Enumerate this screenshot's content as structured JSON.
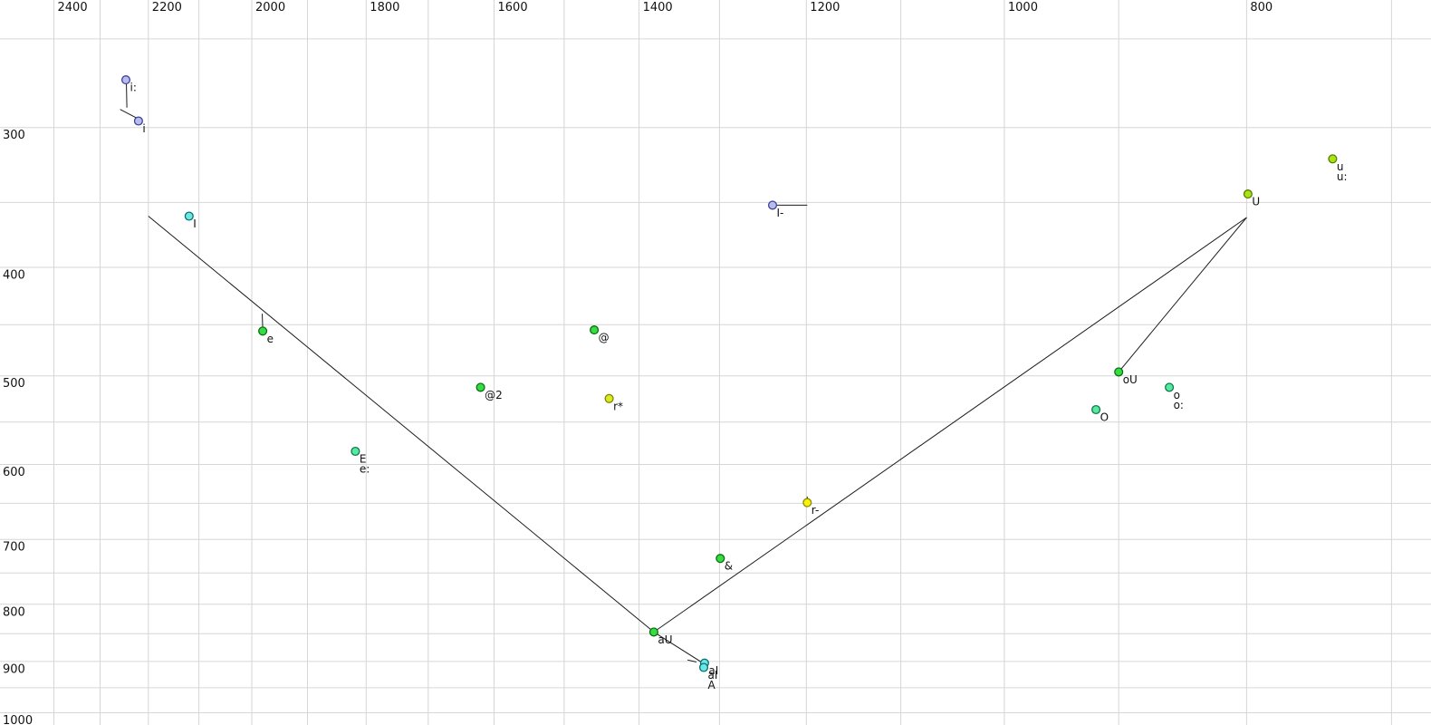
{
  "chart_data": {
    "type": "scatter",
    "title": "",
    "legend": false,
    "grid": true,
    "x_axis": {
      "scale": "log",
      "orientation": "top",
      "direction": "values decrease to the right",
      "tick_labels": [
        "2400",
        "2200",
        "2000",
        "1800",
        "1600",
        "1400",
        "1200",
        "1000",
        "800"
      ],
      "tick_values": [
        2400,
        2200,
        2000,
        1800,
        1600,
        1400,
        1200,
        1000,
        800
      ],
      "gridline_values": [
        2400,
        2300,
        2200,
        2100,
        2000,
        1900,
        1800,
        1700,
        1600,
        1500,
        1400,
        1300,
        1200,
        1100,
        1000,
        900,
        800,
        700
      ],
      "range_shown": [
        2560,
        680
      ]
    },
    "y_axis": {
      "scale": "log",
      "orientation": "left",
      "direction": "values increase downward",
      "tick_labels": [
        "300",
        "400",
        "500",
        "600",
        "700",
        "800",
        "900",
        "1000"
      ],
      "tick_values": [
        300,
        400,
        500,
        600,
        700,
        800,
        900,
        1000
      ],
      "gridline_values": [
        250,
        300,
        350,
        400,
        450,
        500,
        550,
        600,
        650,
        700,
        750,
        800,
        850,
        900,
        950,
        1000
      ],
      "range_shown": [
        250,
        1030
      ]
    },
    "points": [
      {
        "labels": [
          "i:"
        ],
        "f2": 2246,
        "f1": 272,
        "color": "periwinkle"
      },
      {
        "labels": [
          "i"
        ],
        "f2": 2220,
        "f1": 296,
        "color": "periwinkle"
      },
      {
        "labels": [
          "I"
        ],
        "f2": 2119,
        "f1": 360,
        "color": "cyan"
      },
      {
        "labels": [
          "e"
        ],
        "f2": 1980,
        "f1": 456,
        "color": "green"
      },
      {
        "labels": [
          "E",
          "e:"
        ],
        "f2": 1818,
        "f1": 584,
        "color": "mint"
      },
      {
        "labels": [
          "@2"
        ],
        "f2": 1620,
        "f1": 512,
        "color": "green"
      },
      {
        "labels": [
          "@"
        ],
        "f2": 1459,
        "f1": 455,
        "color": "green"
      },
      {
        "labels": [
          "r*"
        ],
        "f2": 1439,
        "f1": 524,
        "color": "chartreuse"
      },
      {
        "labels": [
          "r-"
        ],
        "f2": 1199,
        "f1": 649,
        "color": "yellow"
      },
      {
        "labels": [
          "&"
        ],
        "f2": 1299,
        "f1": 728,
        "color": "green"
      },
      {
        "labels": [
          "aU"
        ],
        "f2": 1381,
        "f1": 847,
        "color": "green"
      },
      {
        "labels": [
          "aI"
        ],
        "f2": 1318,
        "f1": 903,
        "color": "cyan"
      },
      {
        "labels": [
          "aI",
          "A"
        ],
        "f2": 1319,
        "f1": 911,
        "color": "cyan"
      },
      {
        "labels": [
          "oU"
        ],
        "f2": 900,
        "f1": 496,
        "color": "green"
      },
      {
        "labels": [
          "O"
        ],
        "f2": 919,
        "f1": 536,
        "color": "mint"
      },
      {
        "labels": [
          "o",
          "o:"
        ],
        "f2": 859,
        "f1": 512,
        "color": "mint"
      },
      {
        "labels": [
          "U"
        ],
        "f2": 799,
        "f1": 344,
        "color": "yellowgreen"
      },
      {
        "labels": [
          "u",
          "u:"
        ],
        "f2": 739,
        "f1": 320,
        "color": "yellowgreen"
      },
      {
        "labels": [
          "I-"
        ],
        "f2": 1238,
        "f1": 352,
        "color": "periwinkle"
      }
    ],
    "segments": [
      {
        "name": "aI-glide",
        "from": [
          2200,
          360
        ],
        "to": [
          1381,
          847
        ]
      },
      {
        "name": "aU-glide",
        "from": [
          800,
          361
        ],
        "to": [
          1381,
          847
        ]
      },
      {
        "name": "oU-glide",
        "from": [
          800,
          361
        ],
        "to": [
          900,
          496
        ]
      },
      {
        "name": "a-to-aI-arrow",
        "from": [
          1381,
          847
        ],
        "to": [
          1321,
          902
        ]
      },
      {
        "name": "a-to-aI-arrow-barb",
        "from": [
          1339,
          897
        ],
        "to": [
          1328,
          901
        ]
      },
      {
        "name": "i-long-stem",
        "from": [
          2245,
          273
        ],
        "to": [
          2244,
          288
        ]
      },
      {
        "name": "i-incoming-line",
        "from": [
          2258,
          289
        ],
        "to": [
          2225,
          294
        ]
      },
      {
        "name": "e-stem",
        "from": [
          1981,
          440
        ],
        "to": [
          1980,
          454
        ]
      },
      {
        "name": "r-stem",
        "from": [
          1199,
          641
        ],
        "to": [
          1199,
          648
        ]
      },
      {
        "name": "I-bar-line",
        "from": [
          1238,
          352
        ],
        "to": [
          1199,
          352
        ]
      }
    ],
    "palette": {
      "periwinkle": {
        "fill": "#b6bdea",
        "stroke": "#41419b"
      },
      "cyan": {
        "fill": "#6ae9e4",
        "stroke": "#0e6e72"
      },
      "green": {
        "fill": "#35dd41",
        "stroke": "#0b6e14"
      },
      "mint": {
        "fill": "#57e9a2",
        "stroke": "#0e7a4a"
      },
      "yellow": {
        "fill": "#f8f20d",
        "stroke": "#8a8a00"
      },
      "chartreuse": {
        "fill": "#dcea1e",
        "stroke": "#7a8400"
      },
      "yellowgreen": {
        "fill": "#a6e414",
        "stroke": "#5c7a00"
      }
    },
    "gridline_color": "#d6d6d6",
    "segment_color": "#1c1c1c",
    "label_color": "#111111",
    "background_color": "#ffffff"
  }
}
